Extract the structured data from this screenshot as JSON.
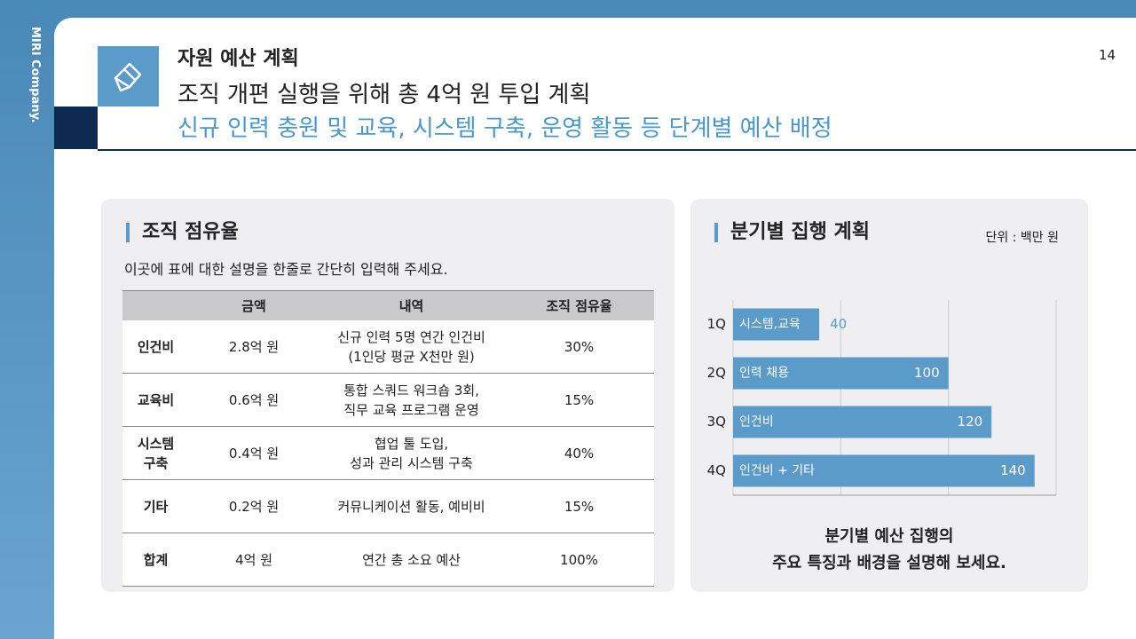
{
  "sidebar": {
    "brand": "MIRI Company."
  },
  "page_number": "14",
  "header": {
    "title": "자원 예산 계획",
    "headline": "조직 개편 실행을 위해 총 4억 원 투입 계획",
    "subheadline": "신규 인력 충원 및 교육, 시스템 구축, 운영 활동 등 단계별 예산 배정"
  },
  "left_panel": {
    "title": "조직 점유율",
    "description": "이곳에 표에 대한 설명을 한줄로 간단히 입력해 주세요."
  },
  "table": {
    "columns": [
      "",
      "금액",
      "내역",
      "조직 점유율"
    ],
    "rows": [
      [
        "인건비",
        "2.8억 원",
        "신규 인력 5명 연간 인건비\n(1인당 평균 X천만 원)",
        "30%"
      ],
      [
        "교육비",
        "0.6억 원",
        "통합 스쿼드 워크숍 3회,\n직무 교육 프로그램 운영",
        "15%"
      ],
      [
        "시스템\n구축",
        "0.4억 원",
        "협업 툴 도입,\n성과 관리 시스템 구축",
        "40%"
      ],
      [
        "기타",
        "0.2억 원",
        "커뮤니케이션 활동, 예비비",
        "15%"
      ],
      [
        "합계",
        "4억 원",
        "연간 총 소요 예산",
        "100%"
      ]
    ]
  },
  "right_panel": {
    "title": "분기별 집행 계획",
    "unit": "단위 : 백만 원",
    "caption": [
      "분기별 예산 집행의",
      "주요 특징과 배경을 설명해 보세요."
    ]
  },
  "chart_data": {
    "type": "hbar",
    "categories": [
      "1Q",
      "2Q",
      "3Q",
      "4Q"
    ],
    "values": [
      40,
      100,
      120,
      140
    ],
    "bar_labels": [
      "시스템,교육",
      "인력 채용",
      "인건비",
      "인건비 + 기타"
    ],
    "color": "#5b9bc9",
    "xlim": [
      0,
      150
    ],
    "xticks": [
      0,
      50,
      100,
      150
    ],
    "grid": true
  }
}
